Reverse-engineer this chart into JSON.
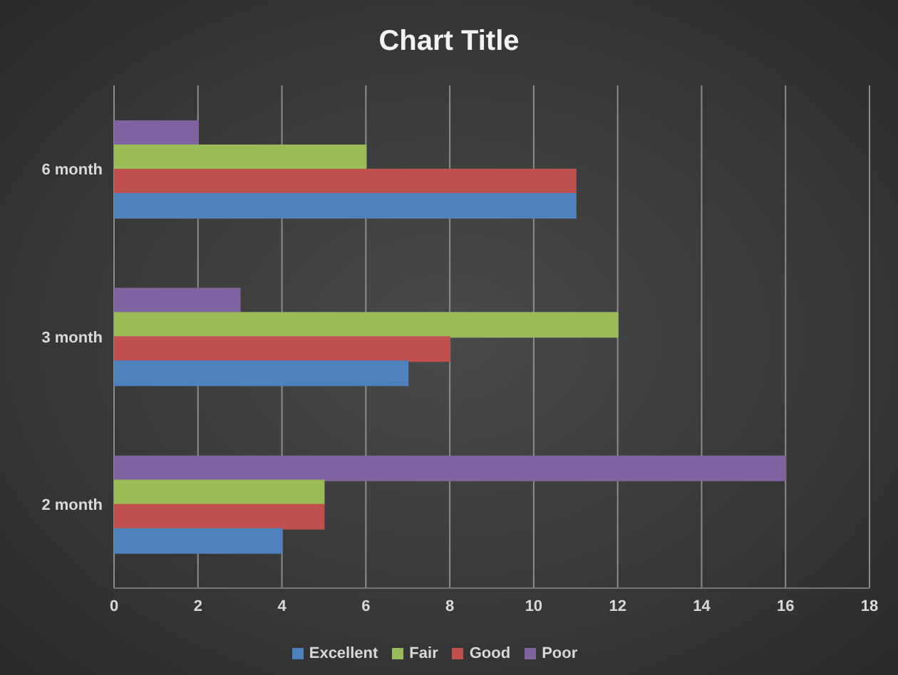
{
  "chart_data": {
    "type": "bar",
    "orientation": "horizontal",
    "title": "Chart Title",
    "categories": [
      "6 month",
      "3 month",
      "2 month"
    ],
    "series": [
      {
        "name": "Poor",
        "color": "#8064a2",
        "values": [
          2,
          3,
          16
        ]
      },
      {
        "name": "Fair",
        "color": "#9bbb59",
        "values": [
          6,
          12,
          5
        ]
      },
      {
        "name": "Good",
        "color": "#c0504d",
        "values": [
          11,
          8,
          5
        ]
      },
      {
        "name": "Excellent",
        "color": "#4f81bd",
        "values": [
          11,
          7,
          4
        ]
      }
    ],
    "xlim": [
      0,
      18
    ],
    "xticks": [
      0,
      2,
      4,
      6,
      8,
      10,
      12,
      14,
      16,
      18
    ],
    "grid": "x",
    "legend": "bottom"
  }
}
